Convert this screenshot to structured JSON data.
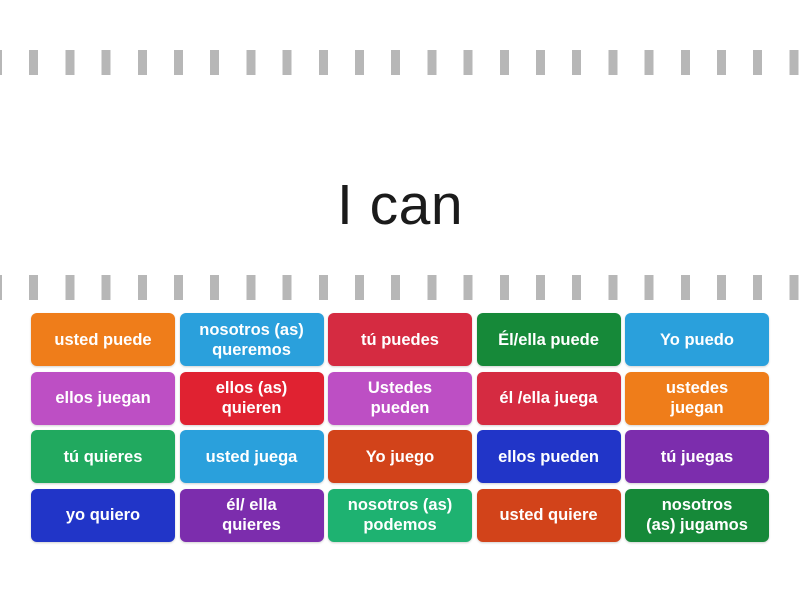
{
  "title": {
    "text": "I can",
    "color": "#1b1b1b"
  },
  "decor": {
    "dash_color": "#b7b7b7"
  },
  "palette": {
    "orange": "#ef7d1a",
    "sky_blue": "#2aa0dc",
    "crimson": "#d52b41",
    "dark_green": "#168939",
    "orchid": "#bd4fc4",
    "bright_red": "#e02231",
    "jade_green": "#21a95f",
    "vermillion": "#d2431a",
    "royal_blue": "#2135c8",
    "purple": "#7c2dad",
    "emerald": "#1eb271"
  },
  "tiles": [
    {
      "label": "usted puede",
      "color": "#ef7d1a"
    },
    {
      "label": "nosotros (as)\nqueremos",
      "color": "#2aa0dc"
    },
    {
      "label": "tú puedes",
      "color": "#d52b41"
    },
    {
      "label": "Él/ella puede",
      "color": "#168939"
    },
    {
      "label": "Yo puedo",
      "color": "#2aa0dc"
    },
    {
      "label": "ellos juegan",
      "color": "#bd4fc4"
    },
    {
      "label": "ellos (as)\nquieren",
      "color": "#e02231"
    },
    {
      "label": "Ustedes\npueden",
      "color": "#bd4fc4"
    },
    {
      "label": "él /ella juega",
      "color": "#d52b41"
    },
    {
      "label": "ustedes\njuegan",
      "color": "#ef7d1a"
    },
    {
      "label": "tú quieres",
      "color": "#21a95f"
    },
    {
      "label": "usted juega",
      "color": "#2aa0dc"
    },
    {
      "label": "Yo juego",
      "color": "#d2431a"
    },
    {
      "label": "ellos pueden",
      "color": "#2135c8"
    },
    {
      "label": "tú juegas",
      "color": "#7c2dad"
    },
    {
      "label": "yo quiero",
      "color": "#2135c8"
    },
    {
      "label": "él/ ella\nquieres",
      "color": "#7c2dad"
    },
    {
      "label": "nosotros (as)\npodemos",
      "color": "#1eb271"
    },
    {
      "label": "usted quiere",
      "color": "#d2431a"
    },
    {
      "label": "nosotros\n(as) jugamos",
      "color": "#168939"
    }
  ]
}
